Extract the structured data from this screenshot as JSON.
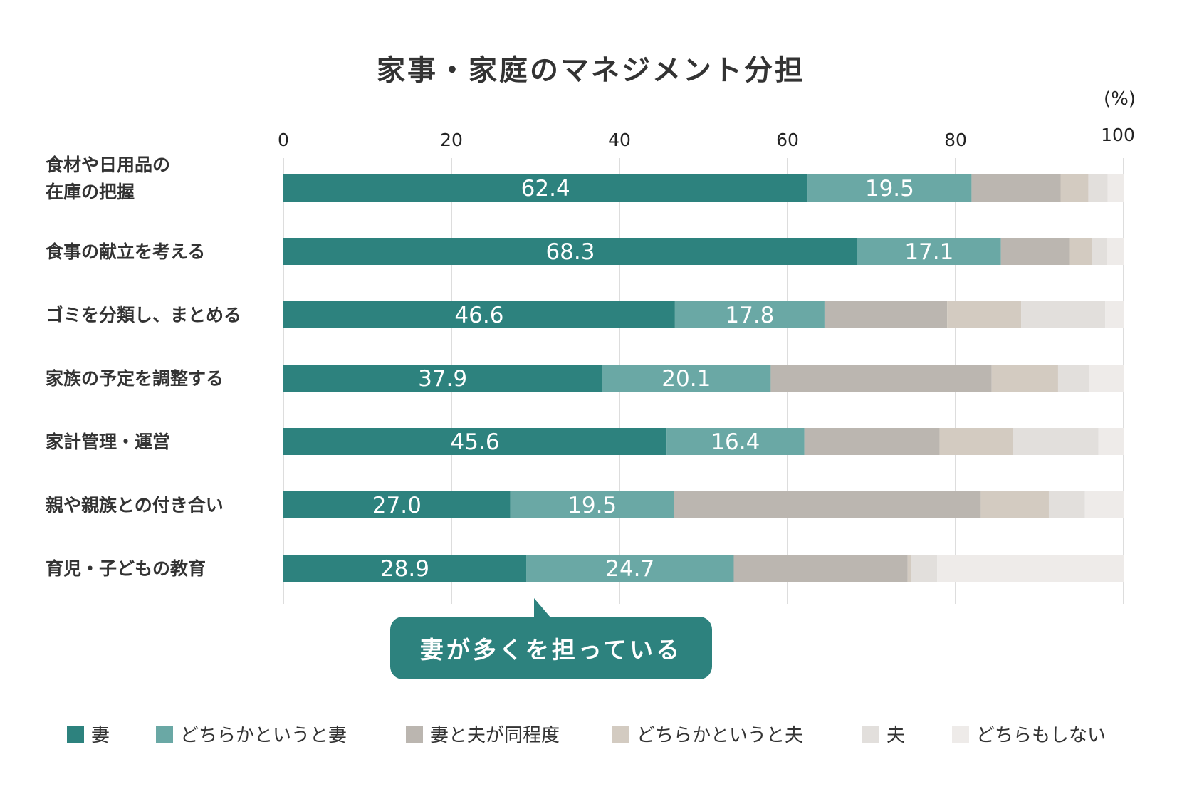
{
  "chart_data": {
    "type": "bar",
    "orientation": "horizontal",
    "stacked": true,
    "title": "家事・家庭のマネジメント分担",
    "unit_label": "(%)",
    "xlim": [
      0,
      100
    ],
    "x_ticks": [
      "0",
      "20",
      "40",
      "60",
      "80",
      "100"
    ],
    "grid": true,
    "legend_position": "bottom",
    "categories": [
      "食材や日用品の\n在庫の把握",
      "食事の献立を考える",
      "ゴミを分類し、まとめる",
      "家族の予定を調整する",
      "家計管理・運営",
      "親や親族との付き合い",
      "育児・子どもの教育"
    ],
    "series": [
      {
        "name": "妻",
        "color": "#2d827e",
        "labeled": true,
        "values": [
          62.4,
          68.3,
          46.6,
          37.9,
          45.6,
          27.0,
          28.9
        ]
      },
      {
        "name": "どちらかというと妻",
        "color": "#6aa8a5",
        "labeled": true,
        "values": [
          19.5,
          17.1,
          17.8,
          20.1,
          16.4,
          19.5,
          24.7
        ]
      },
      {
        "name": "妻と夫が同程度",
        "color": "#bbb6b0",
        "labeled": false,
        "values": [
          10.6,
          8.2,
          14.6,
          26.3,
          16.1,
          36.5,
          20.7
        ]
      },
      {
        "name": "どちらかというと夫",
        "color": "#d3cbc1",
        "labeled": false,
        "values": [
          3.3,
          2.6,
          8.8,
          7.9,
          8.7,
          8.1,
          0.4
        ]
      },
      {
        "name": "夫",
        "color": "#e2dfdc",
        "labeled": false,
        "values": [
          2.3,
          1.8,
          10.0,
          3.7,
          10.2,
          4.3,
          3.1
        ]
      },
      {
        "name": "どちらもしない",
        "color": "#eeebe9",
        "labeled": false,
        "values": [
          1.9,
          2.0,
          2.2,
          4.1,
          3.0,
          4.6,
          22.2
        ]
      }
    ],
    "annotation": "妻が多くを担っている"
  },
  "colors": {
    "accent": "#2d827e",
    "gridline": "#dddddd",
    "text": "#333333"
  }
}
